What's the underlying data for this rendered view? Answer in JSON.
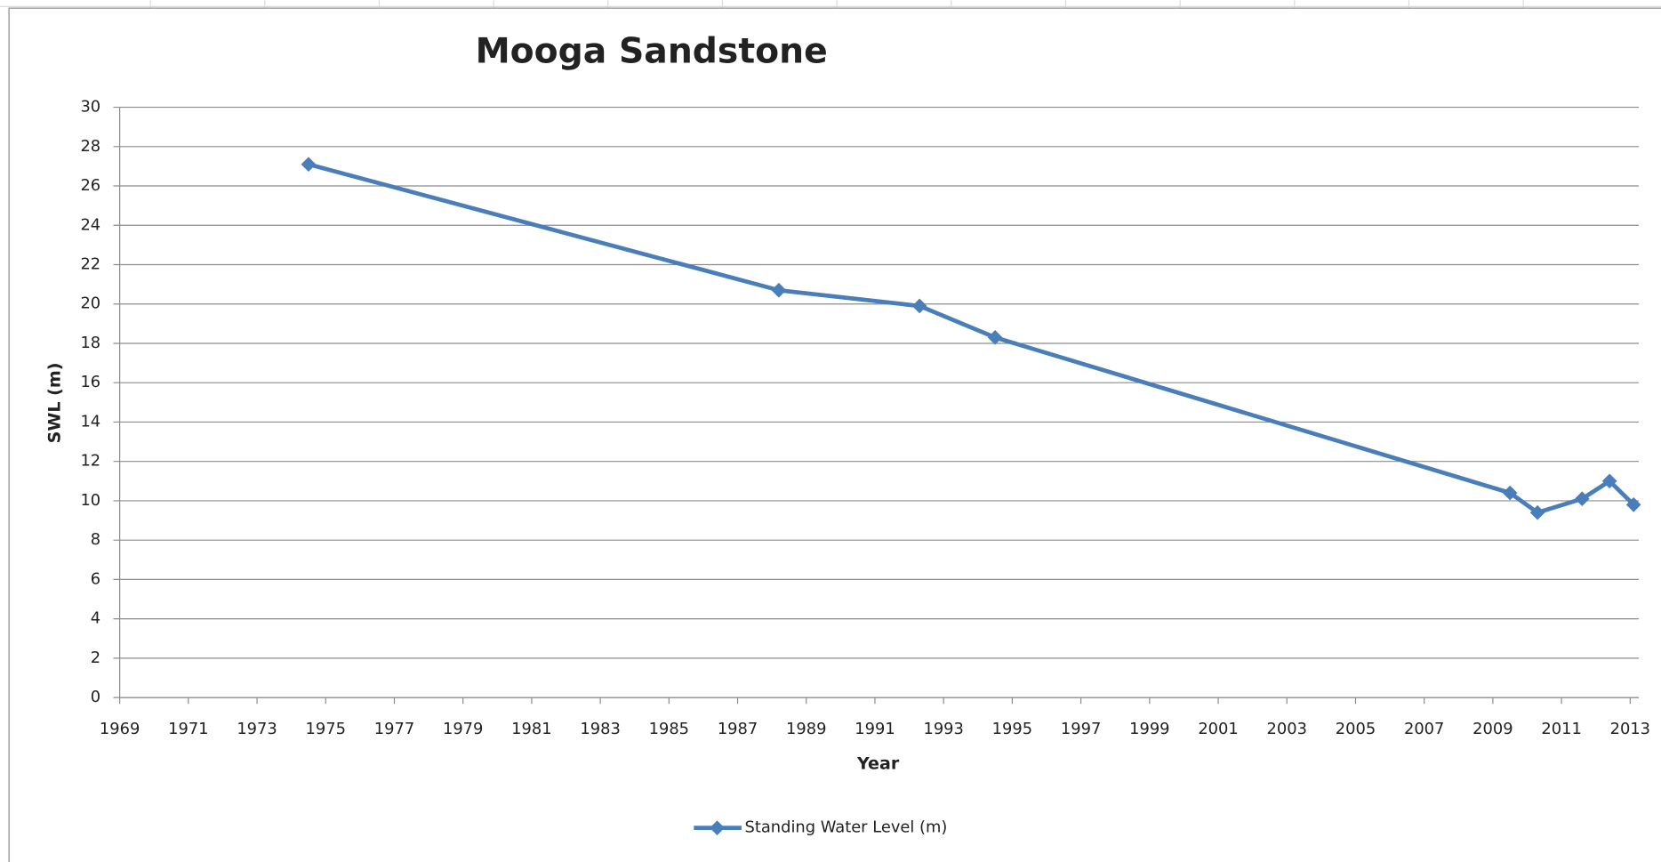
{
  "chart_data": {
    "type": "line",
    "title": "Mooga Sandstone",
    "x_label": "Year",
    "y_label": "SWL (m)",
    "x": [
      1974.5,
      1988.2,
      1992.3,
      1994.5,
      2009.5,
      2010.3,
      2011.6,
      2012.4,
      2013.1
    ],
    "series": [
      {
        "name": "Standing Water Level (m)",
        "color": "#4a7ebb",
        "values": [
          27.1,
          20.7,
          19.9,
          18.3,
          10.4,
          9.4,
          10.1,
          11.0,
          9.8
        ]
      }
    ],
    "xlim": [
      1969,
      2013.25
    ],
    "xticks": [
      1969,
      1971,
      1973,
      1975,
      1977,
      1979,
      1981,
      1983,
      1985,
      1987,
      1989,
      1991,
      1993,
      1995,
      1997,
      1999,
      2001,
      2003,
      2005,
      2007,
      2009,
      2011,
      2013
    ],
    "ylim": [
      0,
      30
    ],
    "yticks": [
      0,
      2,
      4,
      6,
      8,
      10,
      12,
      14,
      16,
      18,
      20,
      22,
      24,
      26,
      28,
      30
    ],
    "grid": true,
    "legend": "bottom"
  }
}
